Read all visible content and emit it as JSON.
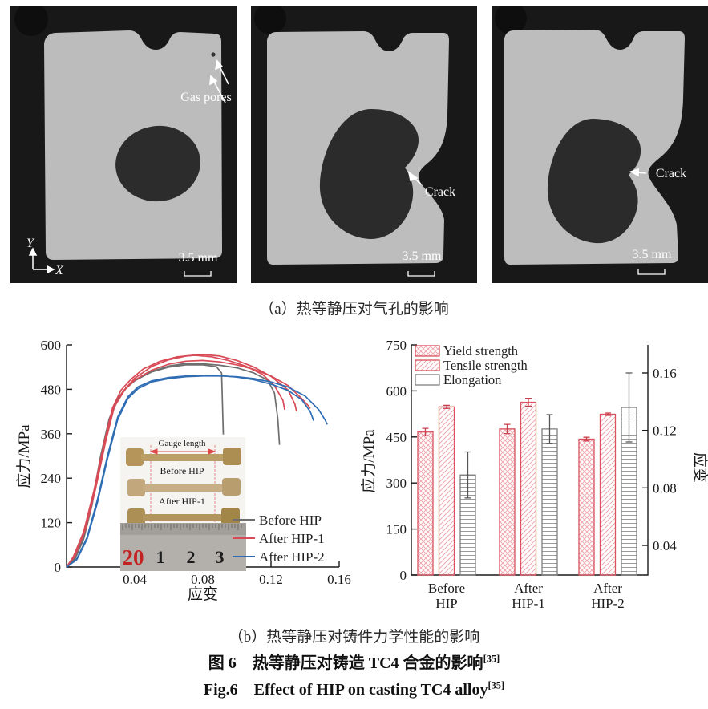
{
  "captions": {
    "a": "（a）热等静压对气孔的影响",
    "b": "（b）热等静压对铸件力学性能的影响",
    "cn": "图 6　热等静压对铸造 TC4 合金的影响",
    "cn_ref": "[35]",
    "en": "Fig.6　Effect of HIP on casting TC4 alloy",
    "en_ref": "[35]"
  },
  "panels": [
    {
      "gas_pores_label": "Gas pores",
      "scale_label": "3.5 mm",
      "axis_y": "Y",
      "axis_x": "X"
    },
    {
      "crack_label": "Crack",
      "scale_label": "3.5 mm"
    },
    {
      "crack_label": "Crack",
      "scale_label": "3.5 mm"
    }
  ],
  "colors": {
    "before_hip": "#6e6e6e",
    "after_hip1": "#d84a56",
    "after_hip2": "#2e6db4",
    "bar_red": "#d9525e",
    "bar_red_hatch": "#efa9af",
    "elong_gray": "#808080",
    "axis": "#1a1a1a"
  },
  "chart_data": [
    {
      "type": "line",
      "xlabel": "应变",
      "ylabel": "应力/MPa",
      "xlim": [
        0,
        0.16
      ],
      "ylim": [
        0,
        600
      ],
      "xticks": [
        "0.04",
        "0.08",
        "0.12",
        "0.16"
      ],
      "xtick_values": [
        0.04,
        0.08,
        0.12,
        0.16
      ],
      "yticks": [
        "0",
        "120",
        "240",
        "360",
        "480",
        "600"
      ],
      "ytick_values": [
        0,
        120,
        240,
        360,
        480,
        600
      ],
      "legend": [
        {
          "name": "Before HIP",
          "color": "#6e6e6e"
        },
        {
          "name": "After HIP-1",
          "color": "#d84a56"
        },
        {
          "name": "After HIP-2",
          "color": "#2e6db4"
        }
      ],
      "series": [
        {
          "name": "Before HIP",
          "color": "#6e6e6e",
          "points": [
            [
              0,
              0
            ],
            [
              0.005,
              25
            ],
            [
              0.01,
              80
            ],
            [
              0.015,
              175
            ],
            [
              0.02,
              300
            ],
            [
              0.025,
              400
            ],
            [
              0.03,
              455
            ],
            [
              0.035,
              485
            ],
            [
              0.04,
              505
            ],
            [
              0.05,
              527
            ],
            [
              0.06,
              540
            ],
            [
              0.07,
              546
            ],
            [
              0.08,
              546
            ],
            [
              0.088,
              541
            ],
            [
              0.091,
              524
            ],
            [
              0.092,
              358
            ]
          ]
        },
        {
          "name": "Before HIP",
          "color": "#6e6e6e",
          "points": [
            [
              0,
              0
            ],
            [
              0.005,
              22
            ],
            [
              0.01,
              75
            ],
            [
              0.015,
              168
            ],
            [
              0.02,
              292
            ],
            [
              0.025,
              395
            ],
            [
              0.03,
              452
            ],
            [
              0.035,
              483
            ],
            [
              0.04,
              503
            ],
            [
              0.05,
              528
            ],
            [
              0.06,
              543
            ],
            [
              0.07,
              550
            ],
            [
              0.08,
              549
            ],
            [
              0.09,
              545
            ],
            [
              0.1,
              538
            ],
            [
              0.11,
              524
            ],
            [
              0.118,
              505
            ],
            [
              0.122,
              470
            ],
            [
              0.124,
              400
            ],
            [
              0.125,
              330
            ]
          ]
        },
        {
          "name": "After HIP-1",
          "color": "#d84a56",
          "points": [
            [
              0,
              0
            ],
            [
              0.004,
              28
            ],
            [
              0.01,
              95
            ],
            [
              0.016,
              205
            ],
            [
              0.022,
              335
            ],
            [
              0.027,
              430
            ],
            [
              0.032,
              478
            ],
            [
              0.038,
              508
            ],
            [
              0.045,
              535
            ],
            [
              0.055,
              556
            ],
            [
              0.065,
              568
            ],
            [
              0.075,
              572
            ],
            [
              0.085,
              568
            ],
            [
              0.095,
              558
            ],
            [
              0.105,
              543
            ],
            [
              0.115,
              520
            ],
            [
              0.122,
              490
            ],
            [
              0.127,
              450
            ],
            [
              0.128,
              425
            ]
          ]
        },
        {
          "name": "After HIP-1",
          "color": "#d84a56",
          "points": [
            [
              0,
              0
            ],
            [
              0.004,
              26
            ],
            [
              0.01,
              90
            ],
            [
              0.016,
              198
            ],
            [
              0.022,
              328
            ],
            [
              0.027,
              424
            ],
            [
              0.033,
              474
            ],
            [
              0.04,
              510
            ],
            [
              0.05,
              542
            ],
            [
              0.06,
              560
            ],
            [
              0.07,
              570
            ],
            [
              0.08,
              574
            ],
            [
              0.09,
              570
            ],
            [
              0.1,
              558
            ],
            [
              0.11,
              540
            ],
            [
              0.12,
              515
            ],
            [
              0.13,
              478
            ],
            [
              0.134,
              440
            ],
            [
              0.135,
              420
            ]
          ]
        },
        {
          "name": "After HIP-1",
          "color": "#d84a56",
          "points": [
            [
              0,
              0
            ],
            [
              0.005,
              30
            ],
            [
              0.011,
              100
            ],
            [
              0.017,
              210
            ],
            [
              0.023,
              340
            ],
            [
              0.028,
              432
            ],
            [
              0.034,
              478
            ],
            [
              0.04,
              505
            ],
            [
              0.05,
              532
            ],
            [
              0.06,
              548
            ],
            [
              0.07,
              556
            ],
            [
              0.08,
              558
            ],
            [
              0.09,
              554
            ],
            [
              0.1,
              546
            ],
            [
              0.11,
              534
            ],
            [
              0.12,
              516
            ],
            [
              0.13,
              490
            ],
            [
              0.138,
              455
            ],
            [
              0.142,
              435
            ],
            [
              0.143,
              428
            ]
          ]
        },
        {
          "name": "After HIP-2",
          "color": "#2e6db4",
          "points": [
            [
              0,
              0
            ],
            [
              0.006,
              22
            ],
            [
              0.012,
              80
            ],
            [
              0.018,
              180
            ],
            [
              0.024,
              300
            ],
            [
              0.03,
              405
            ],
            [
              0.036,
              460
            ],
            [
              0.042,
              487
            ],
            [
              0.05,
              503
            ],
            [
              0.06,
              512
            ],
            [
              0.07,
              516
            ],
            [
              0.08,
              518
            ],
            [
              0.09,
              517
            ],
            [
              0.1,
              513
            ],
            [
              0.11,
              506
            ],
            [
              0.12,
              494
            ],
            [
              0.13,
              477
            ],
            [
              0.138,
              452
            ],
            [
              0.143,
              420
            ],
            [
              0.145,
              395
            ]
          ]
        },
        {
          "name": "After HIP-2",
          "color": "#2e6db4",
          "points": [
            [
              0,
              0
            ],
            [
              0.006,
              20
            ],
            [
              0.012,
              75
            ],
            [
              0.018,
              172
            ],
            [
              0.024,
              292
            ],
            [
              0.03,
              398
            ],
            [
              0.036,
              455
            ],
            [
              0.042,
              482
            ],
            [
              0.05,
              500
            ],
            [
              0.06,
              509
            ],
            [
              0.07,
              514
            ],
            [
              0.08,
              516
            ],
            [
              0.09,
              516
            ],
            [
              0.1,
              514
            ],
            [
              0.11,
              509
            ],
            [
              0.12,
              500
            ],
            [
              0.13,
              486
            ],
            [
              0.14,
              462
            ],
            [
              0.148,
              425
            ],
            [
              0.152,
              395
            ],
            [
              0.153,
              385
            ]
          ]
        }
      ],
      "inset": {
        "gauge_label": "Gauge length",
        "spec_labels": [
          "Before HIP",
          "After HIP-1",
          "After HIP-2"
        ],
        "ruler_numbers": [
          "20",
          "1",
          "2",
          "3"
        ]
      }
    },
    {
      "type": "bar",
      "ylabel_left": "应力/MPa",
      "ylabel_right": "应变",
      "ylim_left": [
        0,
        750
      ],
      "yticks_left": [
        "0",
        "150",
        "300",
        "450",
        "600",
        "750"
      ],
      "ytick_left_values": [
        0,
        150,
        300,
        450,
        600,
        750
      ],
      "yticks_right": [
        "0.04",
        "0.08",
        "0.12",
        "0.16"
      ],
      "ytick_right_values": [
        0.04,
        0.08,
        0.12,
        0.16
      ],
      "categories": [
        [
          "Before",
          "HIP"
        ],
        [
          "After",
          "HIP-1"
        ],
        [
          "After",
          "HIP-2"
        ]
      ],
      "series": [
        {
          "name": "Yield strength",
          "axis": "left",
          "values": [
            466,
            476,
            443
          ],
          "errors": [
            12,
            15,
            6
          ],
          "pattern": "pat-cross",
          "color": "#d9525e",
          "error_color": "#c9404d"
        },
        {
          "name": "Tensile strength",
          "axis": "left",
          "values": [
            548,
            563,
            524
          ],
          "errors": [
            5,
            13,
            4
          ],
          "pattern": "pat-diag",
          "color": "#d9525e",
          "error_color": "#c9404d"
        },
        {
          "name": "Elongation",
          "axis": "right",
          "values": [
            0.089,
            0.121,
            0.136
          ],
          "errors": [
            0.016,
            0.01,
            0.024
          ],
          "pattern": "pat-hlines",
          "color": "#808080",
          "error_color": "#555555"
        }
      ]
    }
  ]
}
